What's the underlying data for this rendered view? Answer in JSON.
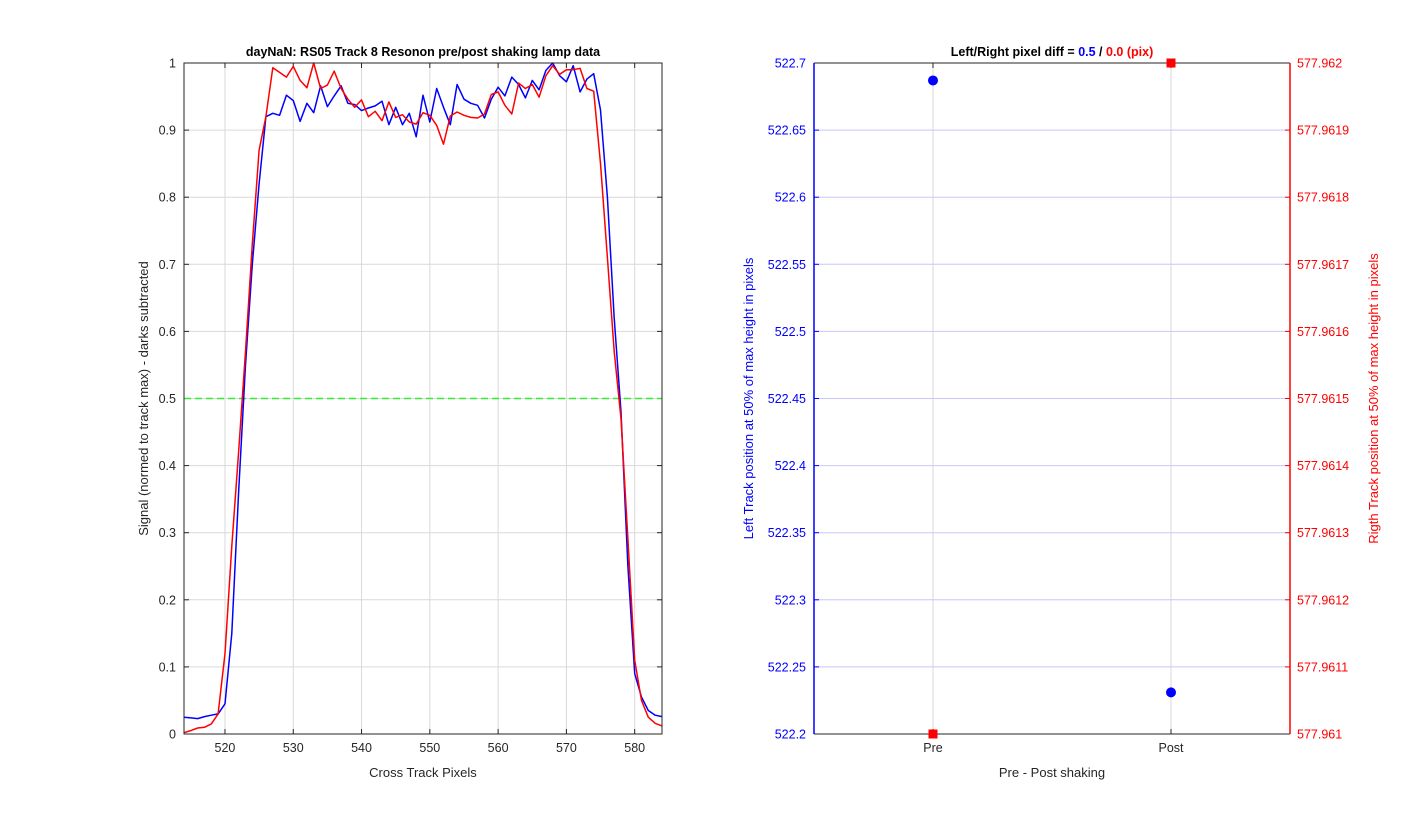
{
  "chart_data": [
    {
      "type": "line",
      "title": "dayNaN: RS05  Track 8 Resonon pre/post shaking lamp data",
      "xlabel": "Cross Track Pixels",
      "ylabel": "Signal (normed to track max) - darks subtracted",
      "xlim": [
        514,
        584
      ],
      "ylim": [
        0,
        1
      ],
      "xticks": [
        520,
        530,
        540,
        550,
        560,
        570,
        580
      ],
      "yticks": [
        0,
        0.1,
        0.2,
        0.3,
        0.4,
        0.5,
        0.6,
        0.7,
        0.8,
        0.9,
        1
      ],
      "yticklabels": [
        "0",
        "0.1",
        "0.2",
        "0.3",
        "0.4",
        "0.5",
        "0.6",
        "0.7",
        "0.8",
        "0.9",
        "1"
      ],
      "grid": true,
      "x": [
        514,
        515,
        516,
        517,
        518,
        519,
        520,
        521,
        522,
        523,
        524,
        525,
        526,
        527,
        528,
        529,
        530,
        531,
        532,
        533,
        534,
        535,
        536,
        537,
        538,
        539,
        540,
        541,
        542,
        543,
        544,
        545,
        546,
        547,
        548,
        549,
        550,
        551,
        552,
        553,
        554,
        555,
        556,
        557,
        558,
        559,
        560,
        561,
        562,
        563,
        564,
        565,
        566,
        567,
        568,
        569,
        570,
        571,
        572,
        573,
        574,
        575,
        576,
        577,
        578,
        579,
        580,
        581,
        582,
        583,
        584
      ],
      "series": [
        {
          "color": "#0000ff",
          "values": [
            0.025,
            0.024,
            0.023,
            0.026,
            0.028,
            0.03,
            0.045,
            0.15,
            0.36,
            0.55,
            0.7,
            0.82,
            0.92,
            0.925,
            0.922,
            0.952,
            0.944,
            0.913,
            0.94,
            0.926,
            0.966,
            0.935,
            0.951,
            0.966,
            0.94,
            0.938,
            0.929,
            0.933,
            0.936,
            0.943,
            0.908,
            0.934,
            0.908,
            0.925,
            0.89,
            0.952,
            0.912,
            0.962,
            0.934,
            0.908,
            0.968,
            0.946,
            0.94,
            0.937,
            0.918,
            0.946,
            0.964,
            0.951,
            0.979,
            0.968,
            0.948,
            0.974,
            0.96,
            0.989,
            1.0,
            0.981,
            0.972,
            0.996,
            0.957,
            0.976,
            0.984,
            0.93,
            0.8,
            0.62,
            0.48,
            0.25,
            0.09,
            0.055,
            0.035,
            0.028,
            0.026
          ]
        },
        {
          "color": "#ff0000",
          "values": [
            0.002,
            0.005,
            0.009,
            0.01,
            0.015,
            0.03,
            0.12,
            0.28,
            0.42,
            0.57,
            0.73,
            0.87,
            0.92,
            0.993,
            0.986,
            0.979,
            0.995,
            0.974,
            0.963,
            1.0,
            0.962,
            0.967,
            0.988,
            0.962,
            0.946,
            0.934,
            0.945,
            0.92,
            0.928,
            0.914,
            0.942,
            0.919,
            0.923,
            0.912,
            0.909,
            0.926,
            0.922,
            0.907,
            0.879,
            0.921,
            0.927,
            0.922,
            0.919,
            0.918,
            0.924,
            0.953,
            0.957,
            0.937,
            0.924,
            0.97,
            0.962,
            0.968,
            0.949,
            0.981,
            0.996,
            0.983,
            0.99,
            0.99,
            0.992,
            0.962,
            0.958,
            0.85,
            0.71,
            0.57,
            0.47,
            0.29,
            0.11,
            0.05,
            0.025,
            0.016,
            0.012
          ]
        }
      ],
      "reference_line": {
        "y": 0.5,
        "color": "#33ee33",
        "style": "dashed"
      }
    },
    {
      "type": "scatter",
      "title_parts": [
        {
          "text": "Left/Right pixel diff = ",
          "color": "#000000"
        },
        {
          "text": "0.5",
          "color": "#0000ff"
        },
        {
          "text": " / ",
          "color": "#000000"
        },
        {
          "text": "0.0 (pix)",
          "color": "#ff0000"
        }
      ],
      "xlabel": "Pre - Post shaking",
      "categories": [
        "Pre",
        "Post"
      ],
      "xlim": [
        0.5,
        2.5
      ],
      "ylabel_left": "Left Track position at 50% of max height in pixels",
      "ylabel_right": "Rigth Track position at 50% of max height in pixels",
      "ylim_left": [
        522.2,
        522.7
      ],
      "yticks_left": [
        522.2,
        522.25,
        522.3,
        522.35,
        522.4,
        522.45,
        522.5,
        522.55,
        522.6,
        522.65,
        522.7
      ],
      "yticklabels_left": [
        "522.2",
        "522.25",
        "522.3",
        "522.35",
        "522.4",
        "522.45",
        "522.5",
        "522.55",
        "522.6",
        "522.65",
        "522.7"
      ],
      "ylim_right": [
        577.961,
        577.962
      ],
      "yticks_right": [
        577.961,
        577.9611,
        577.9612,
        577.9613,
        577.9614,
        577.9615,
        577.9616,
        577.9617,
        577.9618,
        577.9619,
        577.962
      ],
      "yticklabels_right": [
        "577.961",
        "577.9611",
        "577.9612",
        "577.9613",
        "577.9614",
        "577.9615",
        "577.9616",
        "577.9617",
        "577.9618",
        "577.9619",
        "577.962"
      ],
      "grid": true,
      "series": [
        {
          "axis": "left",
          "color": "#0000ff",
          "marker": "circle",
          "x": [
            1,
            2
          ],
          "values": [
            522.687,
            522.231
          ]
        },
        {
          "axis": "right",
          "color": "#ff0000",
          "marker": "square",
          "x": [
            1,
            2
          ],
          "values": [
            577.961,
            577.962
          ]
        }
      ],
      "colors": {
        "left_axis": "#0000ff",
        "right_axis": "#ff0000",
        "right_grid": "#c8c8f8",
        "grid": "#d9d9d9"
      }
    }
  ]
}
